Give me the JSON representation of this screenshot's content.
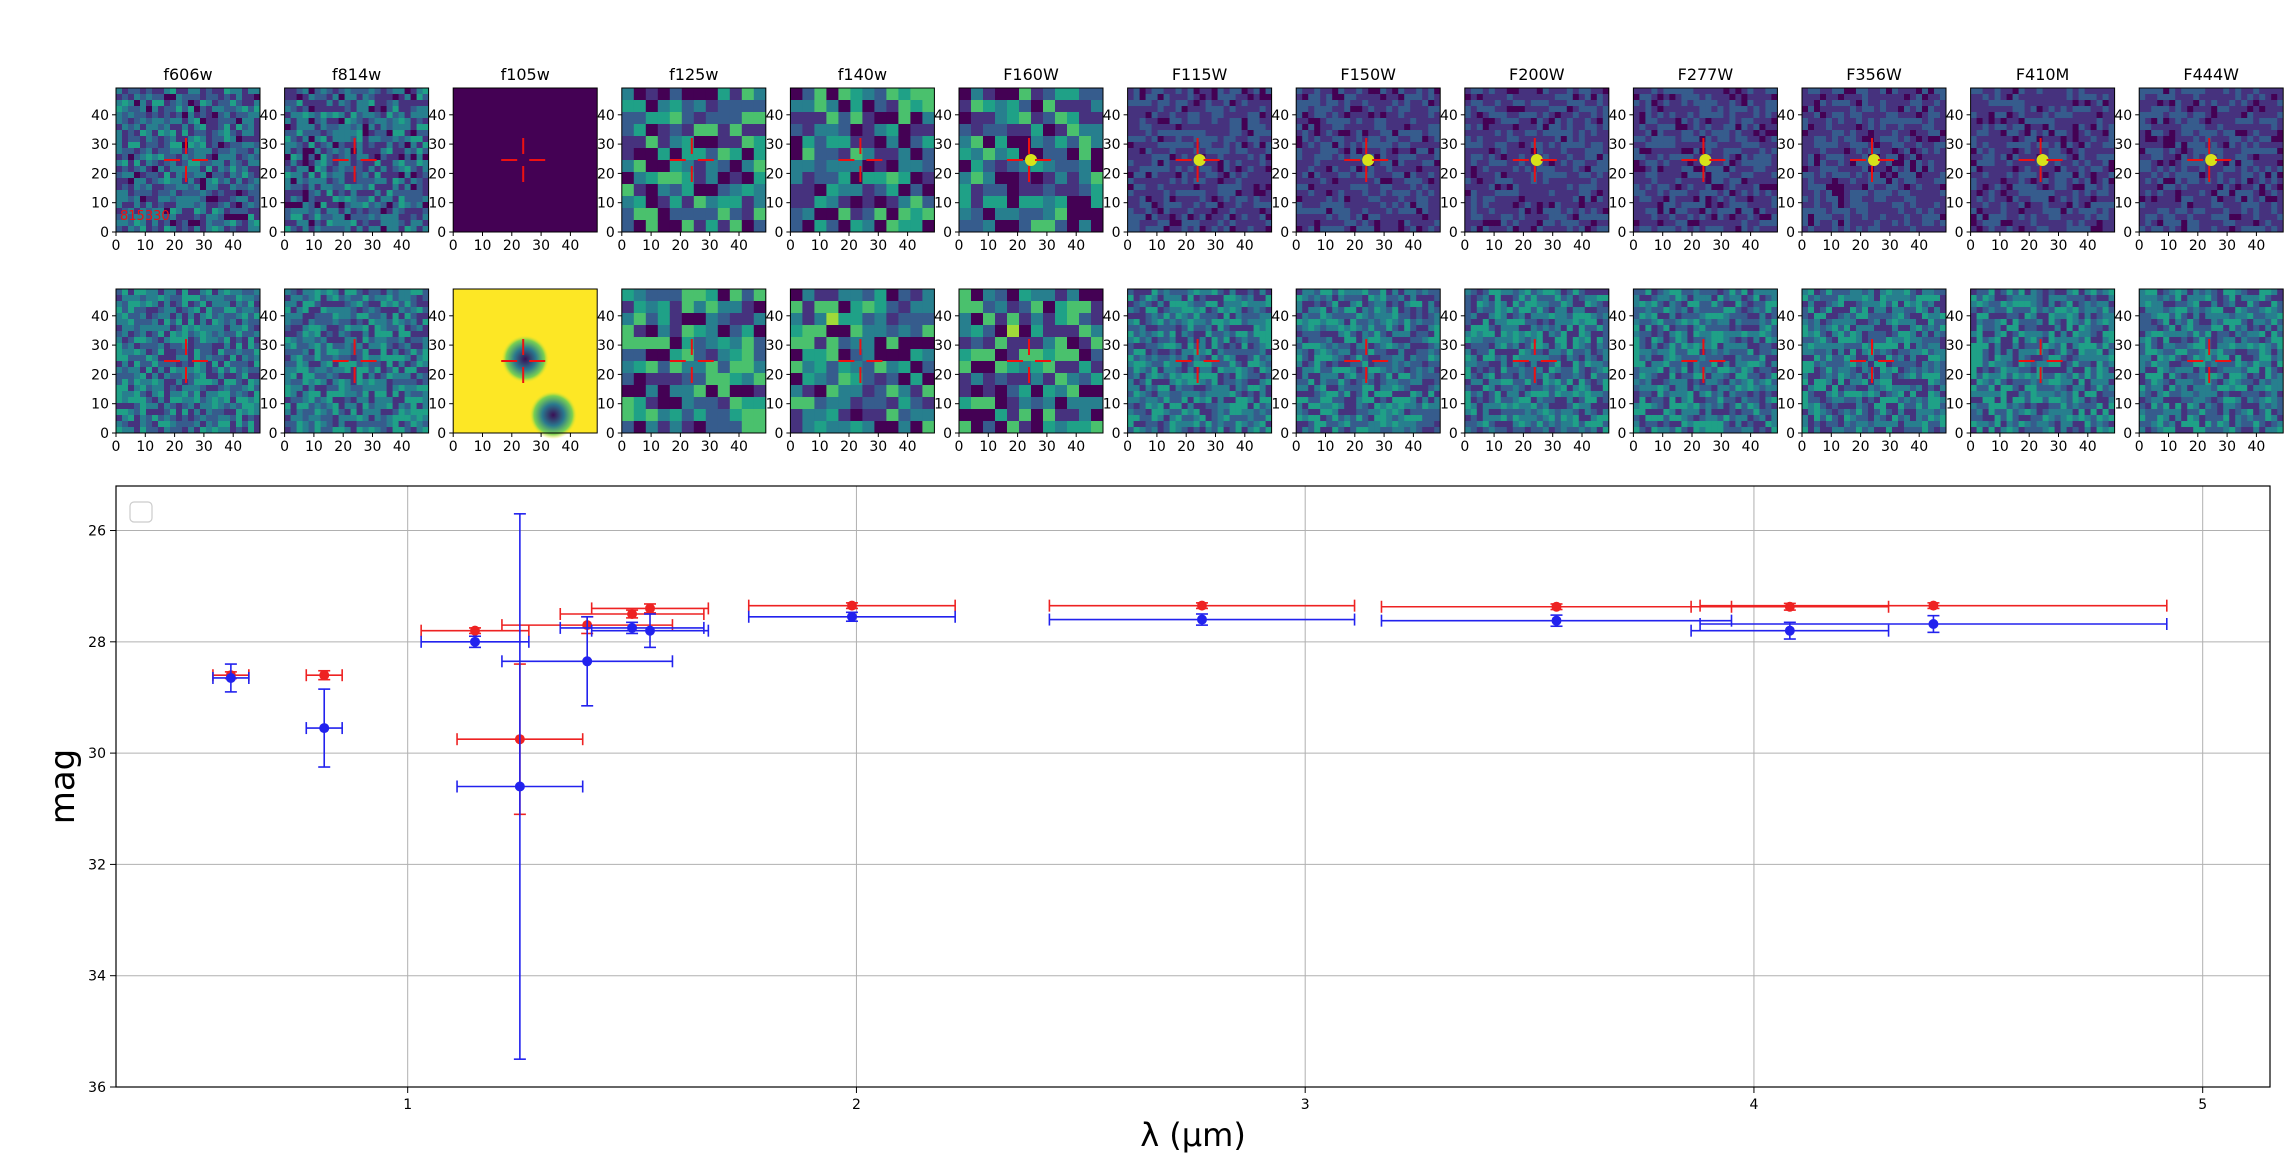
{
  "figure": {
    "filter_labels": [
      "f606w",
      "f814w",
      "f105w",
      "f125w",
      "f140w",
      "F160W",
      "F115W",
      "F150W",
      "F200W",
      "F277W",
      "F356W",
      "F410M",
      "F444W"
    ],
    "source_id": "815330",
    "stamp_ticks": [
      "0",
      "10",
      "20",
      "30",
      "40"
    ]
  },
  "chart_data": {
    "type": "scatter",
    "xlabel": "λ (µm)",
    "ylabel": "mag",
    "xlim": [
      0.35,
      5.15
    ],
    "ylim": [
      36,
      25.2
    ],
    "y_inverted": true,
    "grid": true,
    "legend": "top-left (empty)",
    "xticks": [
      1,
      2,
      3,
      4,
      5
    ],
    "yticks": [
      26,
      28,
      30,
      32,
      34,
      36
    ],
    "colors": {
      "red": "#ee2222",
      "blue": "#2222ee"
    },
    "series": [
      {
        "color": "red",
        "points": [
          {
            "x": 0.606,
            "y": 28.6,
            "xerr": 0.04,
            "yerr": 0.06
          },
          {
            "x": 0.814,
            "y": 28.6,
            "xerr": 0.04,
            "yerr": 0.08
          },
          {
            "x": 1.25,
            "y": 29.75,
            "xerr": 0.14,
            "yerr": 1.35
          },
          {
            "x": 1.15,
            "y": 27.8,
            "xerr": 0.12,
            "yerr": 0.05
          },
          {
            "x": 1.4,
            "y": 27.7,
            "xerr": 0.19,
            "yerr": 0.15
          },
          {
            "x": 1.54,
            "y": 27.4,
            "xerr": 0.13,
            "yerr": 0.08
          },
          {
            "x": 1.5,
            "y": 27.5,
            "xerr": 0.16,
            "yerr": 0.07
          },
          {
            "x": 1.99,
            "y": 27.35,
            "xerr": 0.23,
            "yerr": 0.05
          },
          {
            "x": 2.77,
            "y": 27.35,
            "xerr": 0.34,
            "yerr": 0.05
          },
          {
            "x": 3.56,
            "y": 27.37,
            "xerr": 0.39,
            "yerr": 0.05
          },
          {
            "x": 4.08,
            "y": 27.37,
            "xerr": 0.22,
            "yerr": 0.06
          },
          {
            "x": 4.4,
            "y": 27.35,
            "xerr": 0.52,
            "yerr": 0.05
          }
        ]
      },
      {
        "color": "blue",
        "points": [
          {
            "x": 0.606,
            "y": 28.65,
            "xerr": 0.04,
            "yerr": 0.25
          },
          {
            "x": 0.814,
            "y": 29.55,
            "xerr": 0.04,
            "yerr": 0.7
          },
          {
            "x": 1.25,
            "y": 30.6,
            "xerr": 0.14,
            "yerr": 4.9
          },
          {
            "x": 1.15,
            "y": 28.0,
            "xerr": 0.12,
            "yerr": 0.1
          },
          {
            "x": 1.4,
            "y": 28.35,
            "xerr": 0.19,
            "yerr": 0.8
          },
          {
            "x": 1.54,
            "y": 27.8,
            "xerr": 0.13,
            "yerr": 0.3
          },
          {
            "x": 1.5,
            "y": 27.75,
            "xerr": 0.16,
            "yerr": 0.1
          },
          {
            "x": 1.99,
            "y": 27.55,
            "xerr": 0.23,
            "yerr": 0.08
          },
          {
            "x": 2.77,
            "y": 27.6,
            "xerr": 0.34,
            "yerr": 0.1
          },
          {
            "x": 3.56,
            "y": 27.62,
            "xerr": 0.39,
            "yerr": 0.1
          },
          {
            "x": 4.08,
            "y": 27.8,
            "xerr": 0.22,
            "yerr": 0.15
          },
          {
            "x": 4.4,
            "y": 27.68,
            "xerr": 0.52,
            "yerr": 0.15
          }
        ]
      }
    ]
  }
}
